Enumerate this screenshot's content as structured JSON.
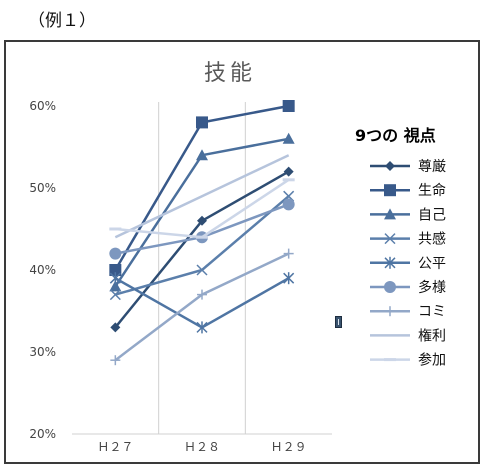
{
  "caption": "（例１）",
  "chart_data": {
    "type": "line",
    "title": "技能",
    "categories": [
      "Ｈ２７",
      "Ｈ２８",
      "Ｈ２９"
    ],
    "ylim": [
      0.2,
      0.6
    ],
    "yticks": [
      {
        "value": 0.2,
        "label": "20%"
      },
      {
        "value": 0.3,
        "label": "30%"
      },
      {
        "value": 0.4,
        "label": "40%"
      },
      {
        "value": 0.5,
        "label": "50%"
      },
      {
        "value": 0.6,
        "label": "60%"
      }
    ],
    "grid": "vertical",
    "legend_title": "9つの 視点",
    "legend_position": "right",
    "series": [
      {
        "name": "尊厳",
        "values": [
          0.33,
          0.46,
          0.52
        ],
        "color": "#2e4d73",
        "marker": "diamond"
      },
      {
        "name": "生命",
        "values": [
          0.4,
          0.58,
          0.6
        ],
        "color": "#38598a",
        "marker": "square"
      },
      {
        "name": "自己",
        "values": [
          0.38,
          0.54,
          0.56
        ],
        "color": "#4a6f9c",
        "marker": "triangle"
      },
      {
        "name": "共感",
        "values": [
          0.37,
          0.4,
          0.49
        ],
        "color": "#5b7fab",
        "marker": "x"
      },
      {
        "name": "公平",
        "values": [
          0.39,
          0.33,
          0.39
        ],
        "color": "#4f75a3",
        "marker": "asterisk"
      },
      {
        "name": "多様",
        "values": [
          0.42,
          0.44,
          0.48
        ],
        "color": "#7d97bf",
        "marker": "circle"
      },
      {
        "name": "コミ",
        "values": [
          0.29,
          0.37,
          0.42
        ],
        "color": "#93a8c8",
        "marker": "plus"
      },
      {
        "name": "権利",
        "values": [
          0.44,
          0.49,
          0.54
        ],
        "color": "#b6c4dc",
        "marker": "none"
      },
      {
        "name": "参加",
        "values": [
          0.45,
          0.44,
          0.51
        ],
        "color": "#ccd6e8",
        "marker": "dash"
      }
    ]
  }
}
